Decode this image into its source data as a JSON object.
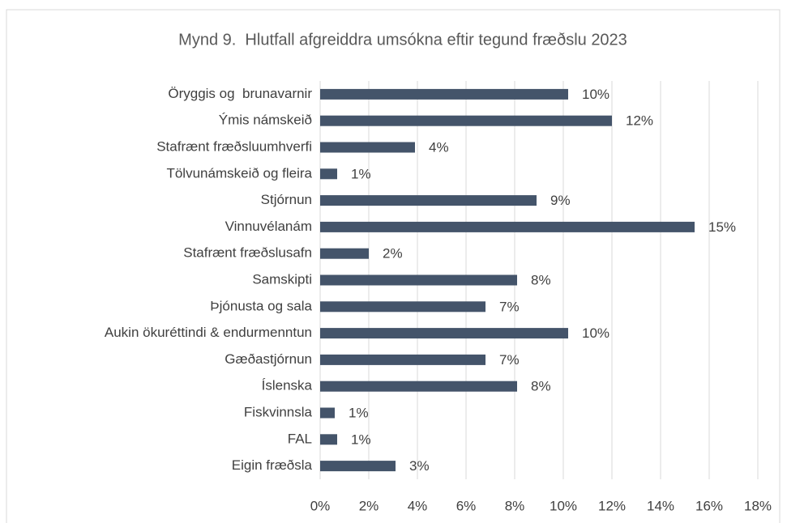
{
  "chart_data": {
    "type": "bar",
    "orientation": "horizontal",
    "title": "Mynd 9.  Hlutfall afgreiddra umsókna eftir tegund fræðslu 2023",
    "categories": [
      "Öryggis og  brunavarnir",
      "Ýmis námskeið",
      "Stafrænt fræðsluumhverfi",
      "Tölvunámskeið og fleira",
      "Stjórnun",
      "Vinnuvélanám",
      "Stafrænt fræðslusafn",
      "Samskipti",
      "Þjónusta og sala",
      "Aukin ökuréttindi & endurmenntun",
      "Gæðastjórnun",
      "Íslenska",
      "Fiskvinnsla",
      "FAL",
      "Eigin fræðsla"
    ],
    "values": [
      10.2,
      12.0,
      3.9,
      0.7,
      8.9,
      15.4,
      2.0,
      8.1,
      6.8,
      10.2,
      6.8,
      8.1,
      0.6,
      0.7,
      3.1
    ],
    "value_labels": [
      "10%",
      "12%",
      "4%",
      "1%",
      "9%",
      "15%",
      "2%",
      "8%",
      "7%",
      "10%",
      "7%",
      "8%",
      "1%",
      "1%",
      "3%"
    ],
    "color": "#44546a",
    "xlim": [
      0,
      18
    ],
    "xticks": [
      {
        "value": 0,
        "label": "0%"
      },
      {
        "value": 2,
        "label": "2%"
      },
      {
        "value": 4,
        "label": "4%"
      },
      {
        "value": 6,
        "label": "6%"
      },
      {
        "value": 8,
        "label": "8%"
      },
      {
        "value": 10,
        "label": "10%"
      },
      {
        "value": 12,
        "label": "12%"
      },
      {
        "value": 14,
        "label": "14%"
      },
      {
        "value": 16,
        "label": "16%"
      },
      {
        "value": 18,
        "label": "18%"
      }
    ],
    "grid": true
  }
}
